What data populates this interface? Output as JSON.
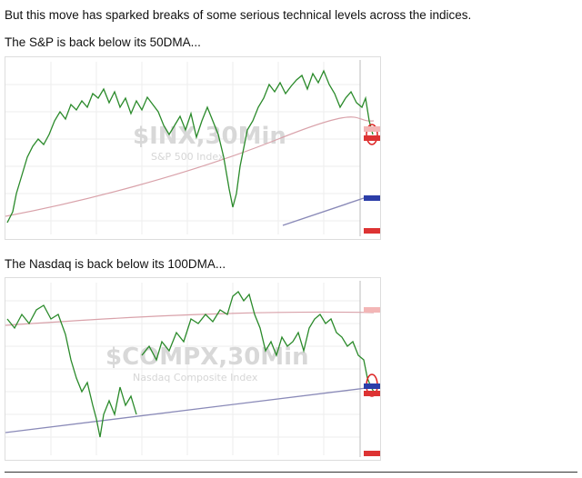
{
  "body": {
    "intro": "But this move has sparked breaks of some serious technical levels across the indices.",
    "caption_1": "The S&P is back below its 50DMA...",
    "caption_2": "The Nasdaq is back below its 100DMA..."
  },
  "charts": [
    {
      "watermark": "$INX,30Min",
      "subtitle": "S&P 500 Index"
    },
    {
      "watermark": "$COMPX,30Min",
      "subtitle": "Nasdaq Composite Index"
    }
  ]
}
